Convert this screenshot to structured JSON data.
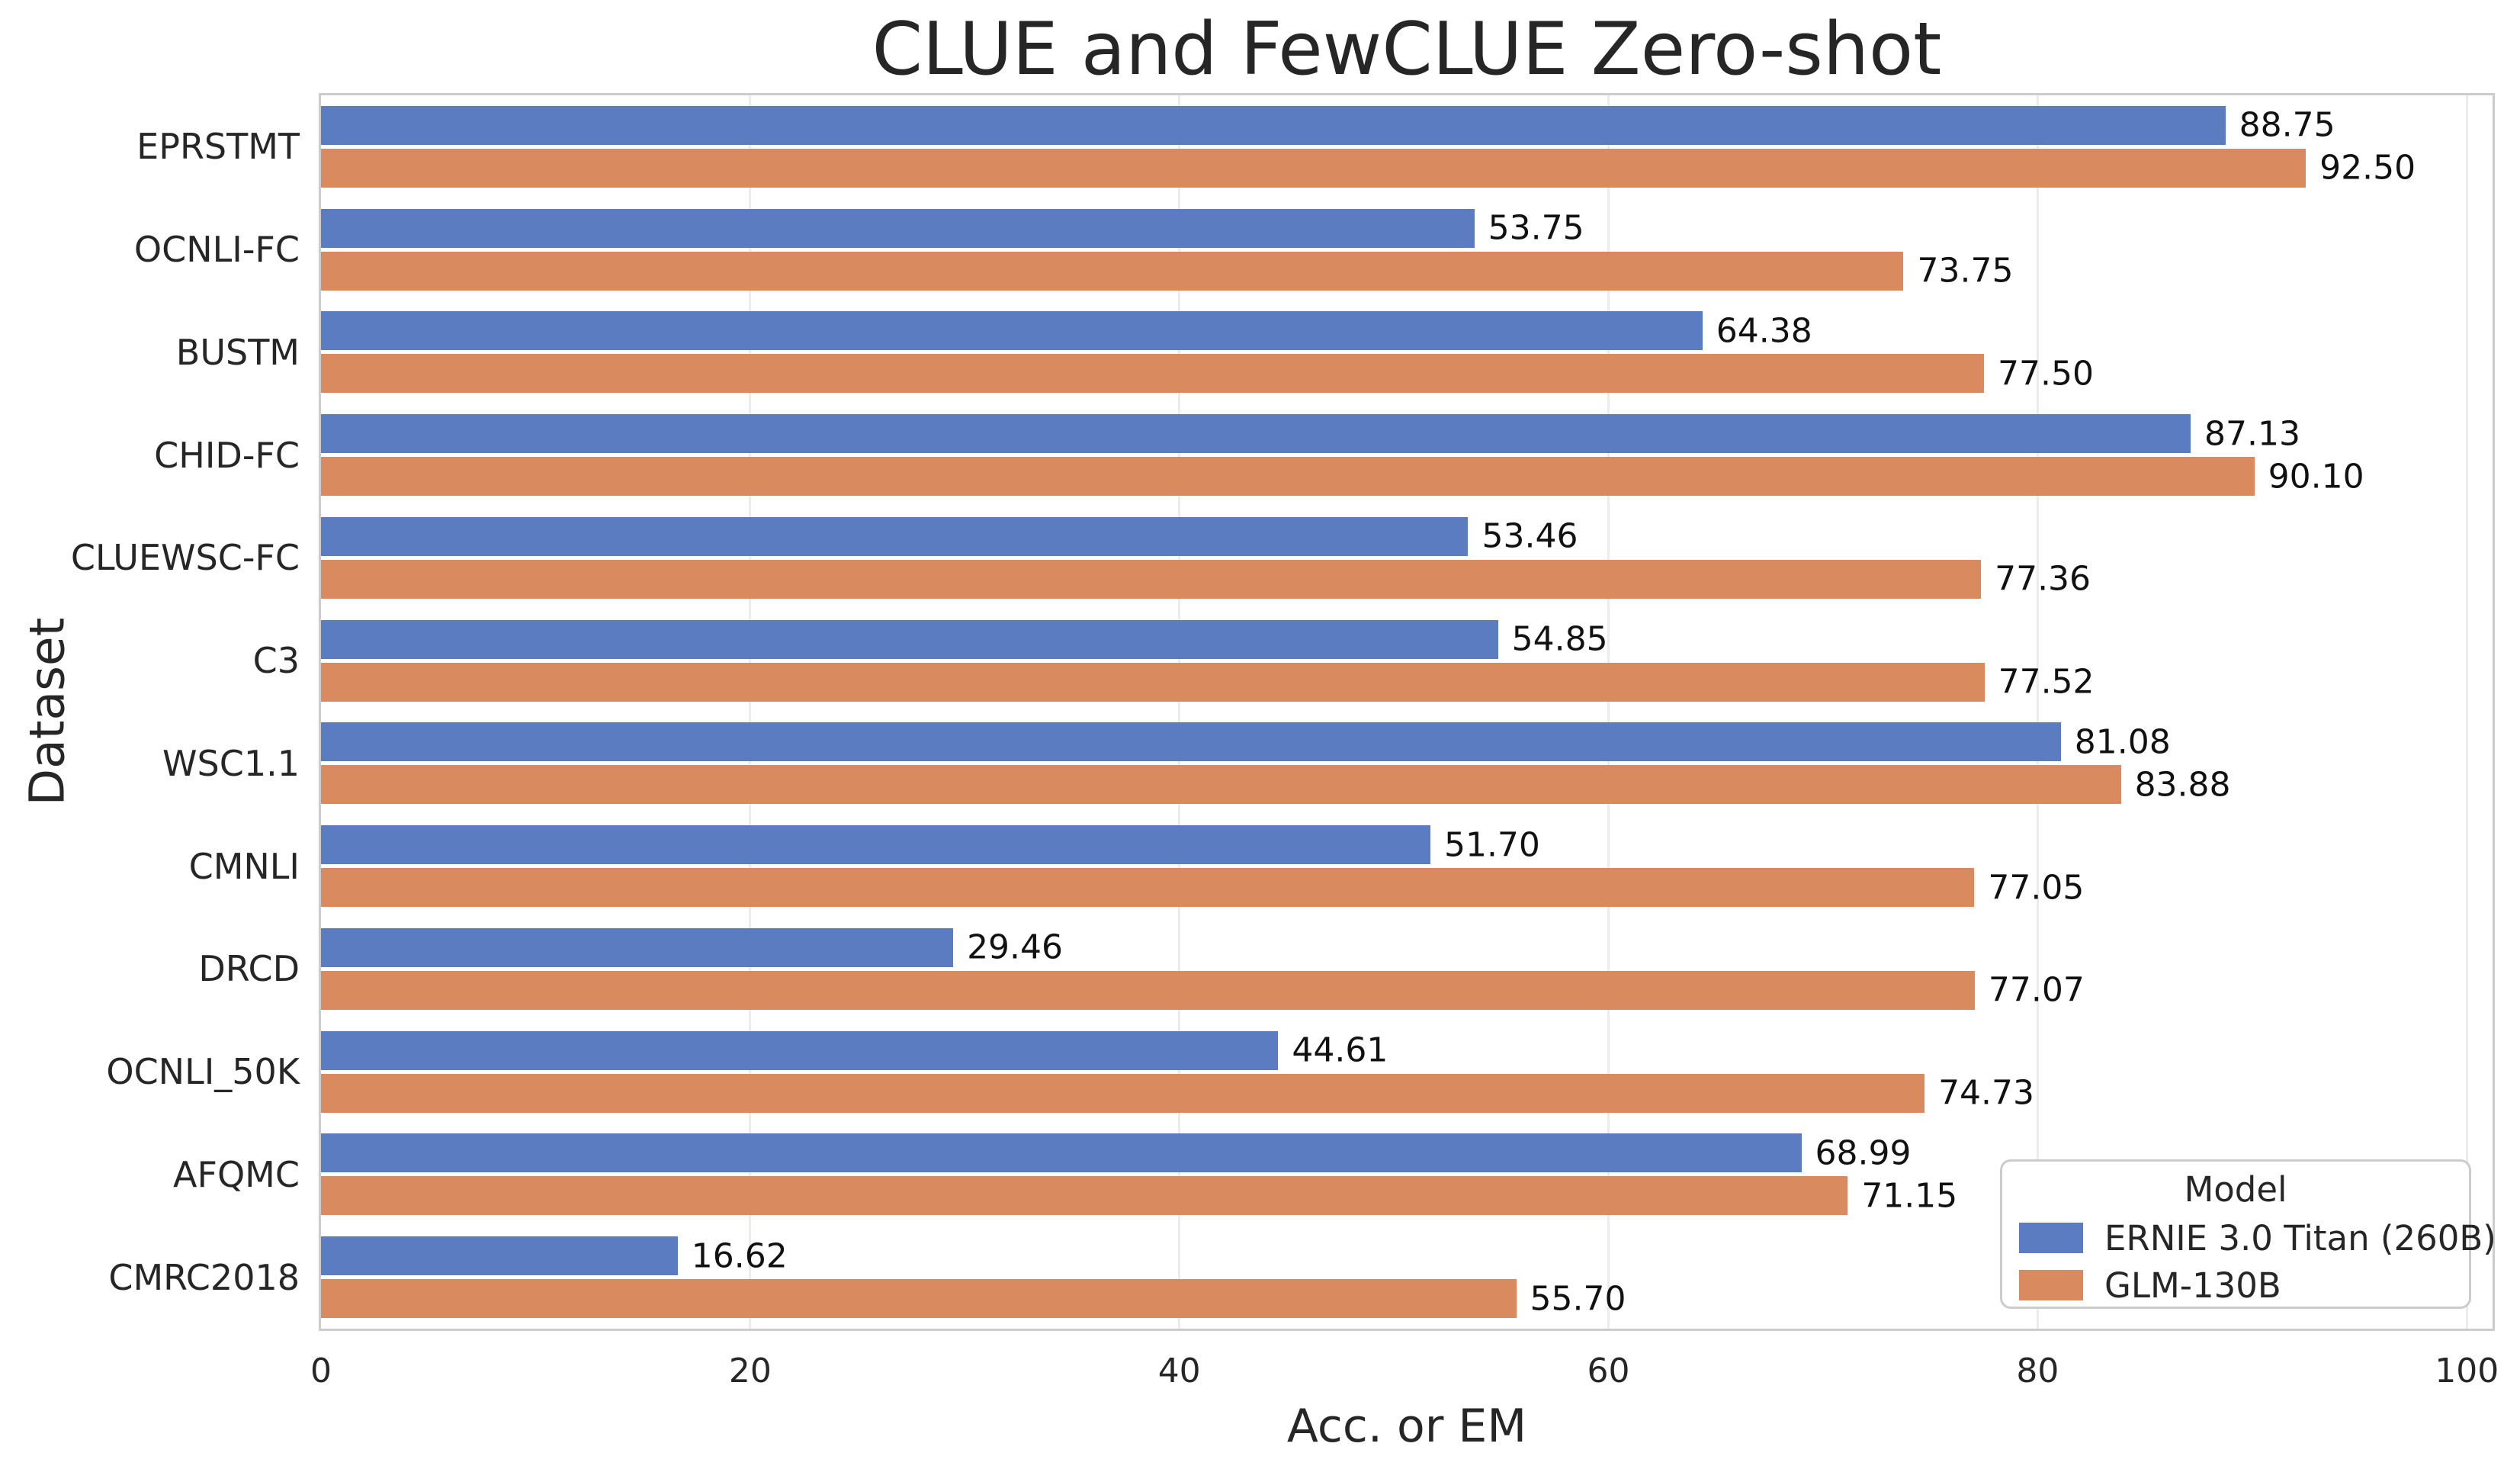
{
  "chart_data": {
    "type": "bar",
    "orientation": "horizontal",
    "title": "CLUE and FewCLUE Zero-shot",
    "xlabel": "Acc. or EM",
    "ylabel": "Dataset",
    "categories": [
      "EPRSTMT",
      "OCNLI-FC",
      "BUSTM",
      "CHID-FC",
      "CLUEWSC-FC",
      "C3",
      "WSC1.1",
      "CMNLI",
      "DRCD",
      "OCNLI_50K",
      "AFQMC",
      "CMRC2018"
    ],
    "series": [
      {
        "name": "ERNIE 3.0 Titan (260B)",
        "color": "#5b7cc1",
        "values": [
          88.75,
          53.75,
          64.38,
          87.13,
          53.46,
          54.85,
          81.08,
          51.7,
          29.46,
          44.61,
          68.99,
          16.62
        ]
      },
      {
        "name": "GLM-130B",
        "color": "#d98b5f",
        "values": [
          92.5,
          73.75,
          77.5,
          90.1,
          77.36,
          77.52,
          83.88,
          77.05,
          77.07,
          74.73,
          71.15,
          55.7
        ]
      }
    ],
    "xlim": [
      0,
      101.2
    ],
    "xticks": [
      0,
      20,
      40,
      60,
      80,
      100
    ],
    "grid": true,
    "gridline_color": "#ececec",
    "spine_color": "#cccccc",
    "value_label_decimals": 2,
    "legend": {
      "title": "Model",
      "position": "lower right"
    }
  }
}
